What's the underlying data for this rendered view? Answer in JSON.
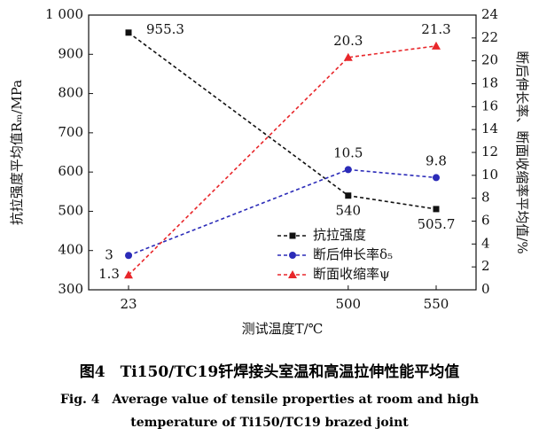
{
  "chart_data": {
    "type": "line",
    "x_label": "测试温度T/℃",
    "y_label": "抗拉强度平均值Rₘ/MPa",
    "y2_label": "断后伸长率、断面收缩率平均值/%",
    "categories": [
      "23",
      "500",
      "550"
    ],
    "ylim": [
      300,
      1000
    ],
    "yticks": [
      300,
      400,
      500,
      600,
      700,
      800,
      900,
      {
        "value": 1000,
        "label": "1 000"
      }
    ],
    "y2lim": [
      0,
      24
    ],
    "y2ticks": [
      0,
      2,
      4,
      6,
      8,
      10,
      12,
      14,
      16,
      18,
      20,
      22,
      24
    ],
    "series": [
      {
        "name": "抗拉强度",
        "color": "#111111",
        "marker": "square",
        "values": [
          955.3,
          540,
          505.7
        ]
      },
      {
        "name": "断后伸长率δ₅",
        "color": "#2b2bb8",
        "marker": "circle",
        "axis": "y2",
        "values": [
          3,
          10.5,
          9.8
        ]
      },
      {
        "name": "断面收缩率ψ",
        "color": "#e8262a",
        "marker": "triangle",
        "axis": "y2",
        "values": [
          1.3,
          20.3,
          21.3
        ]
      }
    ],
    "caption_title": "图4　Ti150/TC19钎焊接头室温和高温拉伸性能平均值",
    "caption_subtitle": "Fig. 4　Average value of tensile properties at room and high temperature of Ti150/TC19 brazed joint"
  }
}
